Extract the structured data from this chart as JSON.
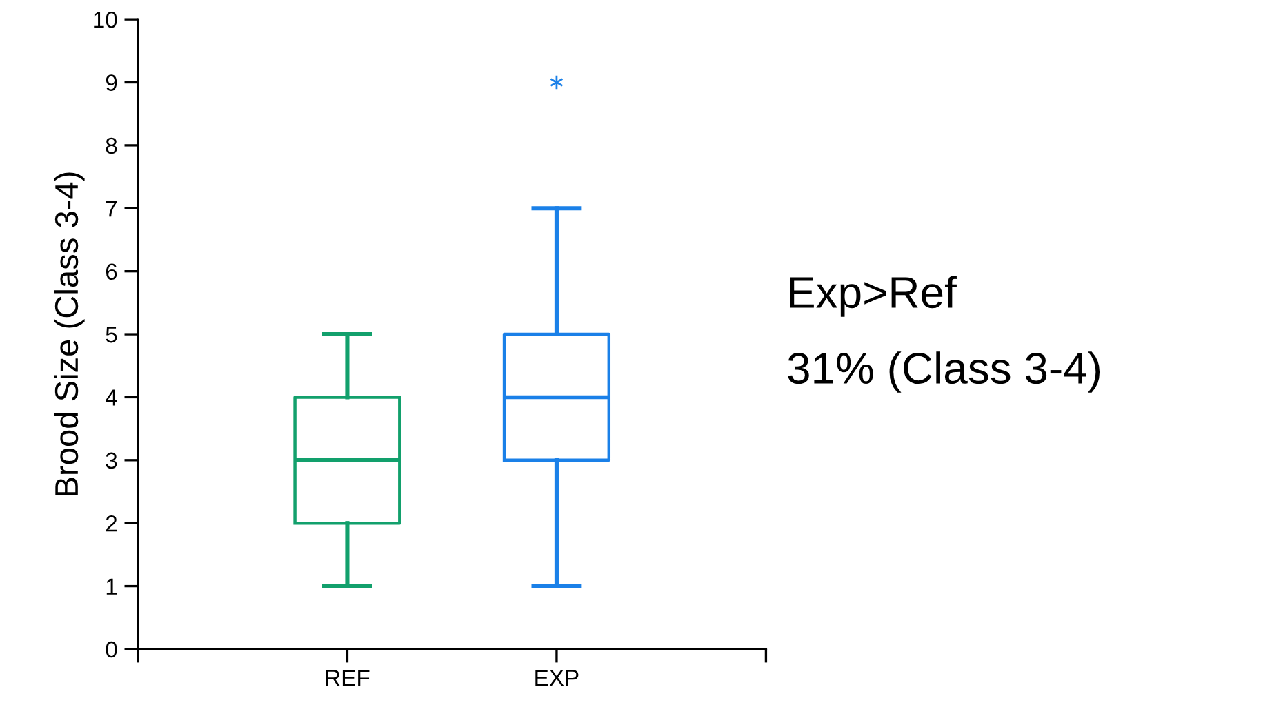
{
  "chart_data": {
    "type": "box",
    "ylabel": "Brood Size (Class 3-4)",
    "categories": [
      "REF",
      "EXP"
    ],
    "colors": [
      "#12a06c",
      "#1a80e8"
    ],
    "boxes": [
      {
        "low": 1,
        "q1": 2,
        "median": 3,
        "q3": 4,
        "high": 5
      },
      {
        "low": 1,
        "q1": 3,
        "median": 4,
        "q3": 5,
        "high": 7,
        "outliers": [
          9
        ]
      }
    ],
    "ylim": [
      0,
      10
    ],
    "yticks": [
      0,
      1,
      2,
      3,
      4,
      5,
      6,
      7,
      8,
      9,
      10
    ],
    "grid": false,
    "marker": "star",
    "annotations": [
      "Exp>Ref",
      "31% (Class 3-4)"
    ]
  }
}
